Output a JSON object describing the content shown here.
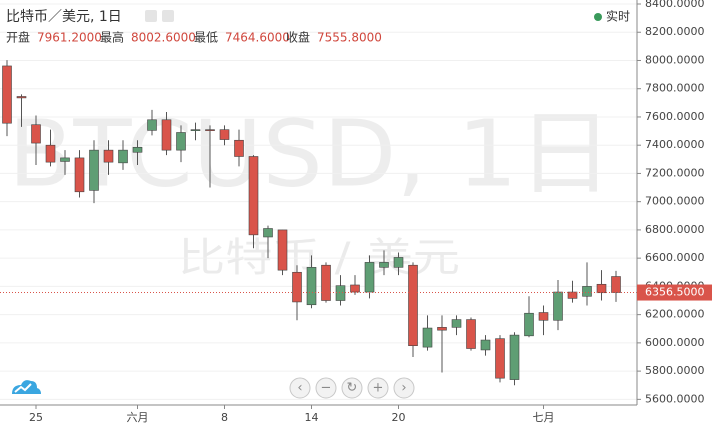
{
  "header": {
    "title": "比特币／美元, 1日",
    "status": "实时",
    "stats": [
      {
        "label": "开盘",
        "value": "7961.2000"
      },
      {
        "label": "最高",
        "value": "8002.6000"
      },
      {
        "label": "最低",
        "value": "7464.6000"
      },
      {
        "label": "收盘",
        "value": "7555.8000"
      }
    ]
  },
  "chart_data": {
    "type": "candlestick",
    "watermark": "BTCUSD, 1日",
    "watermark_sub": "比特币 / 美元",
    "x": [
      null,
      null,
      "25",
      null,
      null,
      null,
      null,
      null,
      null,
      "六月",
      null,
      null,
      null,
      null,
      null,
      "8",
      null,
      null,
      null,
      null,
      null,
      "14",
      null,
      null,
      null,
      null,
      null,
      "20",
      null,
      null,
      null,
      null,
      null,
      null,
      null,
      null,
      null,
      "七月",
      null,
      null,
      null,
      null,
      null
    ],
    "open": [
      7961.2,
      7745,
      7545,
      7400,
      7285,
      7310,
      7080,
      7365,
      7275,
      7350,
      7505,
      7580,
      7365,
      7505,
      7510,
      7510,
      7435,
      7320,
      6750,
      6800,
      6500,
      6270,
      6550,
      6300,
      6410,
      6360,
      6535,
      6535,
      6550,
      5970,
      6110,
      6110,
      6165,
      5950,
      6030,
      5740,
      6050,
      6215,
      6160,
      6360,
      6330,
      6415,
      6470
    ],
    "high": [
      8002.6,
      7760,
      7610,
      7510,
      7365,
      7365,
      7435,
      7435,
      7435,
      7435,
      7650,
      7635,
      7540,
      7560,
      7540,
      7540,
      7510,
      7330,
      6830,
      6800,
      6550,
      6620,
      6570,
      6480,
      6480,
      6620,
      6655,
      6640,
      6570,
      6195,
      6195,
      6195,
      6180,
      6055,
      6055,
      6075,
      6330,
      6265,
      6445,
      6440,
      6570,
      6515,
      6510
    ],
    "low": [
      7464.6,
      7530,
      7260,
      7250,
      7190,
      7030,
      6990,
      7190,
      7225,
      7260,
      7470,
      7330,
      7280,
      7435,
      7100,
      7400,
      7250,
      6670,
      6600,
      6480,
      6160,
      6245,
      6285,
      6265,
      6340,
      6315,
      6480,
      6480,
      5900,
      5945,
      5790,
      6055,
      5945,
      5910,
      5720,
      5700,
      6040,
      6055,
      6090,
      6285,
      6265,
      6300,
      6290
    ],
    "close": [
      7555.8,
      7735,
      7415,
      7280,
      7310,
      7070,
      7365,
      7280,
      7365,
      7385,
      7580,
      7365,
      7490,
      7510,
      7505,
      7440,
      7320,
      6765,
      6810,
      6515,
      6290,
      6535,
      6300,
      6405,
      6360,
      6570,
      6570,
      6605,
      5980,
      6105,
      6090,
      6165,
      5960,
      6020,
      5750,
      6055,
      6210,
      6160,
      6360,
      6315,
      6400,
      6355,
      6356.5
    ],
    "up_color": "#5f9e74",
    "down_color": "#d9544a",
    "price_line": {
      "value": 6356.5,
      "label": "6356.5000"
    },
    "ylim": [
      5560,
      8400
    ],
    "yticks": [
      {
        "value": 8400,
        "label": "8400.0000"
      },
      {
        "value": 8200,
        "label": "8200.0000"
      },
      {
        "value": 8000,
        "label": "8000.0000"
      },
      {
        "value": 7800,
        "label": "7800.0000"
      },
      {
        "value": 7600,
        "label": "7600.0000"
      },
      {
        "value": 7400,
        "label": "7400.0000"
      },
      {
        "value": 7200,
        "label": "7200.0000"
      },
      {
        "value": 7000,
        "label": "7000.0000"
      },
      {
        "value": 6800,
        "label": "6800.0000"
      },
      {
        "value": 6600,
        "label": "6600.0000"
      },
      {
        "value": 6400,
        "label": "6400.0000"
      },
      {
        "value": 6200,
        "label": "6200.0000"
      },
      {
        "value": 6000,
        "label": "6000.0000"
      },
      {
        "value": 5800,
        "label": "5800.0000"
      },
      {
        "value": 5600,
        "label": "5600.0000"
      }
    ],
    "grid": true
  }
}
